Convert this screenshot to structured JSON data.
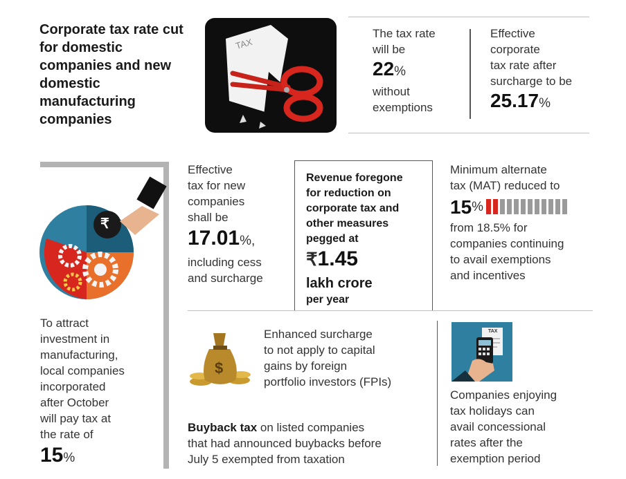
{
  "headline": "Corporate tax rate cut for domestic companies and new domestic manufacturing companies",
  "tax_rate": {
    "line1": "The tax rate",
    "line2": "will be",
    "value": "22",
    "unit": "%",
    "line3": "without",
    "line4": "exemptions"
  },
  "effective": {
    "line1": "Effective",
    "line2": "corporate",
    "line3": "tax rate after",
    "line4": "surcharge to be",
    "value": "25.17",
    "unit": "%"
  },
  "new_companies": {
    "line1": "Effective",
    "line2": "tax for new",
    "line3": "companies",
    "line4": "shall be",
    "value": "17.01",
    "unit": "%,",
    "line5": "including cess",
    "line6": "and surcharge"
  },
  "revenue": {
    "line1": "Revenue foregone",
    "line2": "for reduction on",
    "line3": "corporate tax and",
    "line4": "other measures",
    "line5": "pegged at",
    "currency": "₹",
    "value": "1.45",
    "line6": "lakh crore",
    "line7": "per year"
  },
  "mat": {
    "line1": "Minimum alternate",
    "line2": "tax (MAT) reduced to",
    "value": "15",
    "unit": "%",
    "line3": "from 18.5% for",
    "line4": "companies continuing",
    "line5": "to avail exemptions",
    "line6": "and incentives",
    "bar_filled": 2,
    "bar_total": 12
  },
  "investment": {
    "line1": "To attract",
    "line2": "investment in",
    "line3": "manufacturing,",
    "line4": "local companies",
    "line5": "incorporated",
    "line6": "after October",
    "line7": "will pay tax at",
    "line8": "the rate of",
    "value": "15",
    "unit": "%"
  },
  "surcharge": {
    "line1": "Enhanced surcharge",
    "line2": "to not apply to capital",
    "line3": "gains by foreign",
    "line4": "portfolio investors (FPIs)"
  },
  "buyback": {
    "bold": "Buyback tax",
    "rest1": " on listed companies",
    "line2": "that had announced buybacks before",
    "line3": "July 5 exempted from taxation"
  },
  "holidays": {
    "line1": "Companies enjoying",
    "line2": "tax holidays can",
    "line3": "avail concessional",
    "line4": "rates after the",
    "line5": "exemption period"
  },
  "icons": {
    "tax_paper_label": "TAX",
    "rupee": "₹",
    "dollar": "$",
    "doc_label": "TAX"
  },
  "colors": {
    "accent_red": "#d7261e",
    "dark": "#1a1a1a",
    "gray_bar": "#9a9a9a",
    "teal": "#2e7fa0",
    "orange": "#e8702a",
    "gold": "#c99a2e"
  }
}
